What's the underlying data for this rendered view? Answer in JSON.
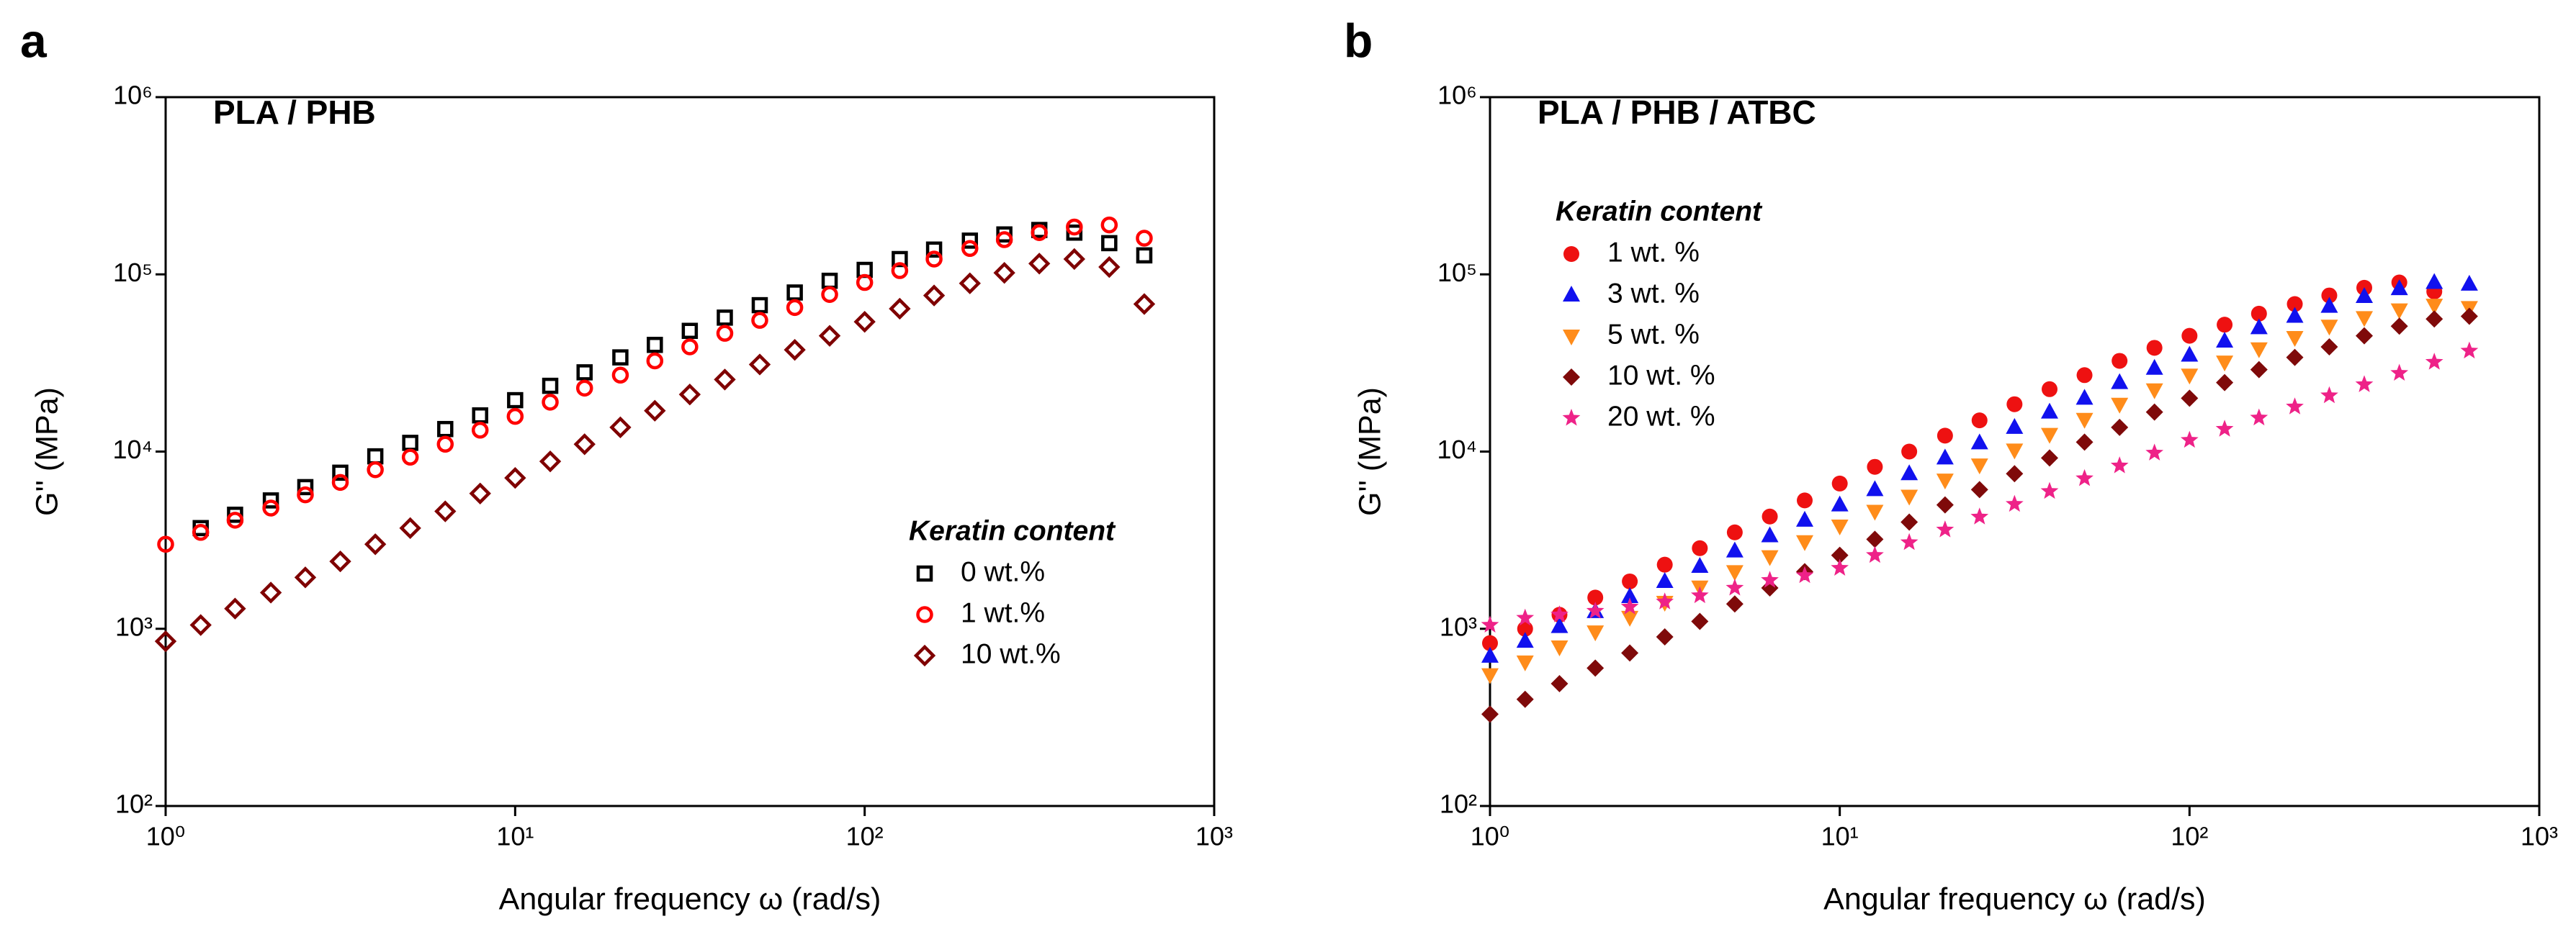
{
  "chart_data": [
    {
      "type": "scatter",
      "panel": "a",
      "title": "PLA / PHB",
      "xlabel": "Angular frequency ω (rad/s)",
      "ylabel": "G'' (MPa)",
      "log_x": true,
      "log_y": true,
      "xlim": [
        1,
        1000
      ],
      "ylim": [
        100,
        1000000
      ],
      "xticks": [
        {
          "value": 1,
          "label": "10⁰"
        },
        {
          "value": 10,
          "label": "10¹"
        },
        {
          "value": 100,
          "label": "10²"
        },
        {
          "value": 1000,
          "label": "10³"
        }
      ],
      "yticks": [
        {
          "value": 100,
          "label": "10²"
        },
        {
          "value": 1000,
          "label": "10³"
        },
        {
          "value": 10000,
          "label": "10⁴"
        },
        {
          "value": 100000,
          "label": "10⁵"
        },
        {
          "value": 1000000,
          "label": "10⁶"
        }
      ],
      "legend_title": "Keratin content",
      "x": [
        1,
        1.26,
        1.58,
        2,
        2.51,
        3.16,
        3.98,
        5.01,
        6.31,
        7.94,
        10,
        12.6,
        15.8,
        20,
        25.1,
        31.6,
        39.8,
        50.1,
        63.1,
        79.4,
        100,
        126,
        158,
        200,
        251,
        316,
        398,
        501,
        631
      ],
      "series": [
        {
          "name": "0 wt.%",
          "color": "#000000",
          "marker": "square",
          "filled": false,
          "values": [
            null,
            3700,
            4400,
            5300,
            6300,
            7600,
            9400,
            11200,
            13400,
            16000,
            19500,
            23500,
            28000,
            34000,
            40000,
            48000,
            57000,
            67000,
            79000,
            92000,
            106000,
            122000,
            138000,
            155000,
            168000,
            178000,
            172000,
            150000,
            128000
          ]
        },
        {
          "name": "1 wt.%",
          "color": "#ff0000",
          "marker": "circle",
          "filled": false,
          "values": [
            3000,
            3500,
            4100,
            4800,
            5700,
            6700,
            7900,
            9300,
            11000,
            13200,
            15800,
            19000,
            22800,
            27000,
            32500,
            39000,
            46500,
            55000,
            65000,
            77000,
            90000,
            105000,
            122000,
            140000,
            157000,
            172000,
            185000,
            190000,
            160000
          ]
        },
        {
          "name": "10 wt.%",
          "color": "#7f0000",
          "marker": "diamond",
          "filled": false,
          "values": [
            850,
            1050,
            1300,
            1600,
            1950,
            2400,
            3000,
            3700,
            4600,
            5800,
            7100,
            8800,
            11000,
            13700,
            17000,
            21000,
            25500,
            31000,
            37500,
            45000,
            54000,
            64000,
            76000,
            89000,
            102000,
            115000,
            122000,
            110000,
            68000
          ]
        }
      ]
    },
    {
      "type": "scatter",
      "panel": "b",
      "title": "PLA / PHB / ATBC",
      "xlabel": "Angular frequency ω (rad/s)",
      "ylabel": "G'' (MPa)",
      "log_x": true,
      "log_y": true,
      "xlim": [
        1,
        1000
      ],
      "ylim": [
        100,
        1000000
      ],
      "xticks": [
        {
          "value": 1,
          "label": "10⁰"
        },
        {
          "value": 10,
          "label": "10¹"
        },
        {
          "value": 100,
          "label": "10²"
        },
        {
          "value": 1000,
          "label": "10³"
        }
      ],
      "yticks": [
        {
          "value": 100,
          "label": "10²"
        },
        {
          "value": 1000,
          "label": "10³"
        },
        {
          "value": 10000,
          "label": "10⁴"
        },
        {
          "value": 100000,
          "label": "10⁵"
        },
        {
          "value": 1000000,
          "label": "10⁶"
        }
      ],
      "legend_title": "Keratin content",
      "x": [
        1,
        1.26,
        1.58,
        2,
        2.51,
        3.16,
        3.98,
        5.01,
        6.31,
        7.94,
        10,
        12.6,
        15.8,
        20,
        25.1,
        31.6,
        39.8,
        50.1,
        63.1,
        79.4,
        100,
        126,
        158,
        200,
        251,
        316,
        398,
        501,
        631
      ],
      "series": [
        {
          "name": "1 wt. %",
          "color": "#ee1111",
          "marker": "circle",
          "filled": true,
          "values": [
            830,
            1000,
            1200,
            1500,
            1850,
            2300,
            2850,
            3500,
            4300,
            5300,
            6600,
            8200,
            10000,
            12300,
            15000,
            18500,
            22500,
            27000,
            32500,
            38500,
            45000,
            52000,
            60000,
            68000,
            76000,
            84000,
            90000,
            80000,
            null
          ]
        },
        {
          "name": "3 wt. %",
          "color": "#1111ee",
          "marker": "triangle-up",
          "filled": true,
          "values": [
            700,
            850,
            1030,
            1250,
            1520,
            1850,
            2250,
            2750,
            3350,
            4100,
            5000,
            6100,
            7500,
            9200,
            11200,
            13700,
            16700,
            20000,
            24500,
            29500,
            35000,
            42000,
            50000,
            58000,
            66000,
            75000,
            83000,
            90000,
            88000
          ]
        },
        {
          "name": "5 wt. %",
          "color": "#ff8c1a",
          "marker": "triangle-down",
          "filled": true,
          "values": [
            550,
            650,
            790,
            960,
            1160,
            1410,
            1720,
            2100,
            2550,
            3100,
            3800,
            4600,
            5600,
            6900,
            8400,
            10200,
            12500,
            15200,
            18500,
            22300,
            27000,
            32000,
            38000,
            44000,
            51000,
            57000,
            63000,
            67000,
            65000
          ]
        },
        {
          "name": "10 wt. %",
          "color": "#7f0a0a",
          "marker": "diamond",
          "filled": true,
          "values": [
            330,
            400,
            490,
            600,
            730,
            900,
            1100,
            1380,
            1700,
            2100,
            2600,
            3200,
            4000,
            5000,
            6100,
            7500,
            9200,
            11300,
            13700,
            16700,
            20000,
            24500,
            29000,
            34000,
            39000,
            45000,
            51000,
            56000,
            58000
          ]
        },
        {
          "name": "20 wt. %",
          "color": "#ee2288",
          "marker": "star",
          "filled": true,
          "values": [
            1050,
            1150,
            1200,
            1260,
            1330,
            1420,
            1540,
            1700,
            1880,
            2000,
            2200,
            2600,
            3070,
            3620,
            4280,
            5050,
            5970,
            7050,
            8320,
            9830,
            11600,
            13400,
            15500,
            17900,
            20700,
            23900,
            27700,
            32000,
            37000
          ]
        }
      ]
    }
  ]
}
